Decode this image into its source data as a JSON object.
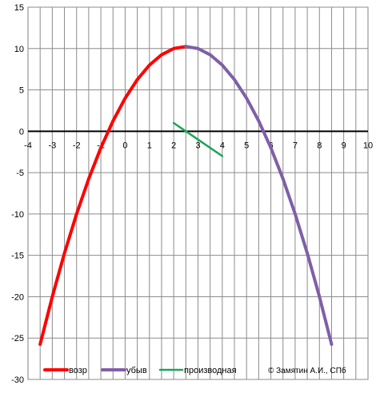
{
  "chart_data": {
    "type": "line",
    "title": "",
    "xlabel": "",
    "ylabel": "",
    "xlim": [
      -4,
      10
    ],
    "ylim": [
      -30,
      15
    ],
    "x_ticks": [
      -4,
      -3,
      -2,
      -1,
      0,
      1,
      2,
      3,
      4,
      5,
      6,
      7,
      8,
      9,
      10
    ],
    "y_ticks": [
      15,
      10,
      5,
      0,
      -5,
      -10,
      -15,
      -20,
      -25,
      -30
    ],
    "x_tick_labels": [
      "-4",
      "-3",
      "-2",
      "-1",
      "0",
      "1",
      "2",
      "3",
      "4",
      "5",
      "6",
      "7",
      "8",
      "9",
      "10"
    ],
    "y_tick_labels": [
      "15",
      "10",
      "5",
      "0",
      "-5",
      "-10",
      "-15",
      "-20",
      "-25",
      "-30"
    ],
    "grid": true,
    "grid_minor_x_step": 0.5,
    "legend_position": "bottom",
    "series": [
      {
        "name": "возр",
        "color": "#ff0000",
        "points": [
          [
            -3.5,
            -25.75
          ],
          [
            -3,
            -20
          ],
          [
            -2.5,
            -14.75
          ],
          [
            -2,
            -10
          ],
          [
            -1.5,
            -5.75
          ],
          [
            -1,
            -2
          ],
          [
            -0.5,
            1.25
          ],
          [
            0,
            4
          ],
          [
            0.5,
            6.25
          ],
          [
            1,
            8
          ],
          [
            1.5,
            9.25
          ],
          [
            2,
            10
          ],
          [
            2.5,
            10.25
          ]
        ]
      },
      {
        "name": "убыв",
        "color": "#7f5fa8",
        "points": [
          [
            2.5,
            10.25
          ],
          [
            3,
            10
          ],
          [
            3.5,
            9.25
          ],
          [
            4,
            8
          ],
          [
            4.5,
            6.25
          ],
          [
            5,
            4
          ],
          [
            5.5,
            1.25
          ],
          [
            6,
            -2
          ],
          [
            6.5,
            -5.75
          ],
          [
            7,
            -10
          ],
          [
            7.5,
            -14.75
          ],
          [
            8,
            -20
          ],
          [
            8.5,
            -25.75
          ]
        ]
      },
      {
        "name": "производная",
        "color": "#1aa55a",
        "points": [
          [
            2,
            1
          ],
          [
            2.5,
            0
          ],
          [
            3,
            -1
          ],
          [
            3.5,
            -2
          ],
          [
            4,
            -3
          ]
        ]
      }
    ],
    "annotation": "© Замятин А.И., СПб"
  }
}
